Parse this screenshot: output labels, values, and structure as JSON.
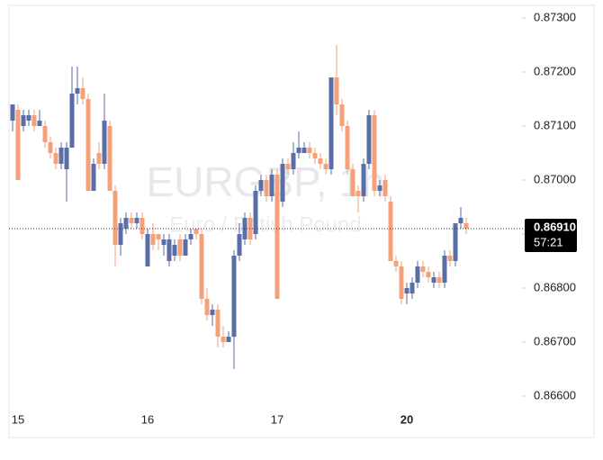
{
  "chart_data": {
    "type": "candlestick",
    "watermark": "EURGBP, 1h",
    "watermark_subtitle": "Euro / British Pound",
    "categories": [
      null,
      "15",
      null,
      null,
      null,
      null,
      null,
      null,
      null,
      null,
      null,
      null,
      null,
      null,
      null,
      null,
      null,
      null,
      null,
      null,
      null,
      null,
      null,
      null,
      null,
      "16",
      null,
      null,
      null,
      null,
      null,
      null,
      null,
      null,
      null,
      null,
      null,
      null,
      null,
      null,
      null,
      null,
      null,
      null,
      null,
      null,
      null,
      null,
      null,
      "17",
      null,
      null,
      null,
      null,
      null,
      null,
      null,
      null,
      null,
      null,
      null,
      null,
      null,
      null,
      null,
      null,
      null,
      null,
      null,
      null,
      null,
      null,
      null,
      "20",
      null,
      null,
      null,
      null,
      null,
      null,
      null,
      null,
      null,
      null,
      null
    ],
    "open": [
      0.8711,
      0.8713,
      0.871,
      0.8711,
      0.8712,
      0.871,
      0.871,
      0.8707,
      0.8705,
      0.8703,
      0.8702,
      0.8706,
      0.8716,
      0.8717,
      0.8715,
      0.8698,
      0.8705,
      0.8703,
      0.871,
      0.8698,
      0.8688,
      0.8691,
      0.8693,
      0.8692,
      0.8693,
      0.8684,
      0.869,
      0.869,
      0.8688,
      0.8685,
      0.8686,
      0.8689,
      0.8686,
      0.8689,
      0.8691,
      0.869,
      0.8678,
      0.8675,
      0.8676,
      0.8671,
      0.867,
      0.8671,
      0.8686,
      0.8689,
      0.8693,
      0.869,
      0.8698,
      0.87,
      0.8697,
      0.8701,
      0.8696,
      0.8703,
      0.8702,
      0.8705,
      0.8705,
      0.8706,
      0.8705,
      0.8704,
      0.8703,
      0.8702,
      0.8719,
      0.8714,
      0.871,
      0.8702,
      0.8698,
      0.8697,
      0.8703,
      0.8712,
      0.8698,
      0.87,
      0.8696,
      0.8685,
      0.8684,
      0.8679,
      0.8679,
      0.8681,
      0.8684,
      0.8683,
      0.8681,
      0.8682,
      0.8681,
      0.8686,
      0.8685,
      0.8692,
      0.8692
    ],
    "high": [
      0.8714,
      0.8714,
      0.8713,
      0.8713,
      0.8713,
      0.8713,
      0.8711,
      0.8708,
      0.8706,
      0.8707,
      0.8707,
      0.8721,
      0.8721,
      0.8719,
      0.8716,
      0.8704,
      0.8707,
      0.8716,
      0.8711,
      0.8699,
      0.8693,
      0.8694,
      0.8694,
      0.8694,
      0.8694,
      0.8691,
      0.8692,
      0.869,
      0.869,
      0.869,
      0.8689,
      0.869,
      0.869,
      0.8691,
      0.8691,
      0.8691,
      0.868,
      0.8677,
      0.8677,
      0.8673,
      0.8672,
      0.8687,
      0.8692,
      0.8694,
      0.8694,
      0.8699,
      0.8701,
      0.8701,
      0.8702,
      0.8702,
      0.8704,
      0.8704,
      0.8707,
      0.8709,
      0.8707,
      0.8707,
      0.8706,
      0.8705,
      0.8704,
      0.8719,
      0.8725,
      0.8715,
      0.8711,
      0.8703,
      0.8699,
      0.8704,
      0.8713,
      0.8713,
      0.87,
      0.8701,
      0.8697,
      0.8686,
      0.8685,
      0.8681,
      0.8682,
      0.8685,
      0.8685,
      0.8684,
      0.8683,
      0.8683,
      0.8687,
      0.8687,
      0.8692,
      0.8695,
      0.8693
    ],
    "low": [
      0.8709,
      0.87,
      0.8709,
      0.871,
      0.8709,
      0.871,
      0.8706,
      0.8704,
      0.8702,
      0.8702,
      0.8696,
      0.8706,
      0.8714,
      0.8714,
      0.8698,
      0.8698,
      0.8702,
      0.8702,
      0.8698,
      0.8684,
      0.8686,
      0.869,
      0.8691,
      0.8691,
      0.8689,
      0.8684,
      0.8687,
      0.8687,
      0.8686,
      0.8684,
      0.8685,
      0.8685,
      0.8686,
      0.8688,
      0.8689,
      0.8677,
      0.8674,
      0.8673,
      0.8669,
      0.8669,
      0.867,
      0.8665,
      0.8685,
      0.8688,
      0.8688,
      0.8689,
      0.8697,
      0.8696,
      0.8696,
      0.8678,
      0.8695,
      0.8701,
      0.8701,
      0.8704,
      0.8705,
      0.8704,
      0.8703,
      0.8702,
      0.8701,
      0.8701,
      0.8712,
      0.8709,
      0.8701,
      0.8697,
      0.8694,
      0.8696,
      0.8702,
      0.8697,
      0.8697,
      0.8696,
      0.8685,
      0.8683,
      0.8677,
      0.8677,
      0.8678,
      0.868,
      0.8682,
      0.8681,
      0.868,
      0.868,
      0.868,
      0.8684,
      0.8684,
      0.8691,
      0.869
    ],
    "close": [
      0.8714,
      0.87,
      0.8712,
      0.8712,
      0.871,
      0.8711,
      0.8707,
      0.8705,
      0.8703,
      0.8706,
      0.8706,
      0.8716,
      0.8717,
      0.8715,
      0.8698,
      0.8703,
      0.8703,
      0.8711,
      0.8698,
      0.8688,
      0.8692,
      0.8693,
      0.8692,
      0.8693,
      0.869,
      0.869,
      0.8688,
      0.8689,
      0.8689,
      0.8689,
      0.8688,
      0.8686,
      0.8689,
      0.869,
      0.869,
      0.8678,
      0.8675,
      0.8676,
      0.8671,
      0.867,
      0.8671,
      0.8686,
      0.869,
      0.8693,
      0.8689,
      0.8698,
      0.87,
      0.8697,
      0.8701,
      0.8678,
      0.8703,
      0.8702,
      0.8705,
      0.8706,
      0.8706,
      0.8705,
      0.8704,
      0.8703,
      0.8702,
      0.8719,
      0.8714,
      0.871,
      0.8702,
      0.8697,
      0.8697,
      0.8703,
      0.8712,
      0.8698,
      0.8699,
      0.8697,
      0.8685,
      0.8684,
      0.8678,
      0.868,
      0.8681,
      0.8684,
      0.8683,
      0.8682,
      0.8682,
      0.8681,
      0.8686,
      0.8685,
      0.8692,
      0.8693,
      0.8691
    ],
    "up_color": "#5a6ea8",
    "down_color": "#f4a17a",
    "ylim": [
      0.8657,
      0.8732
    ],
    "yticks": [
      {
        "value": 0.866,
        "label": "0.86600"
      },
      {
        "value": 0.867,
        "label": "0.86700"
      },
      {
        "value": 0.868,
        "label": "0.86800"
      },
      {
        "value": 0.869,
        "label": "0.86900"
      },
      {
        "value": 0.87,
        "label": "0.87000"
      },
      {
        "value": 0.871,
        "label": "0.87100"
      },
      {
        "value": 0.872,
        "label": "0.87200"
      },
      {
        "value": 0.873,
        "label": "0.87300"
      }
    ],
    "last_price": {
      "value": 0.8691,
      "label": "0.86910"
    },
    "countdown": "57:21"
  }
}
